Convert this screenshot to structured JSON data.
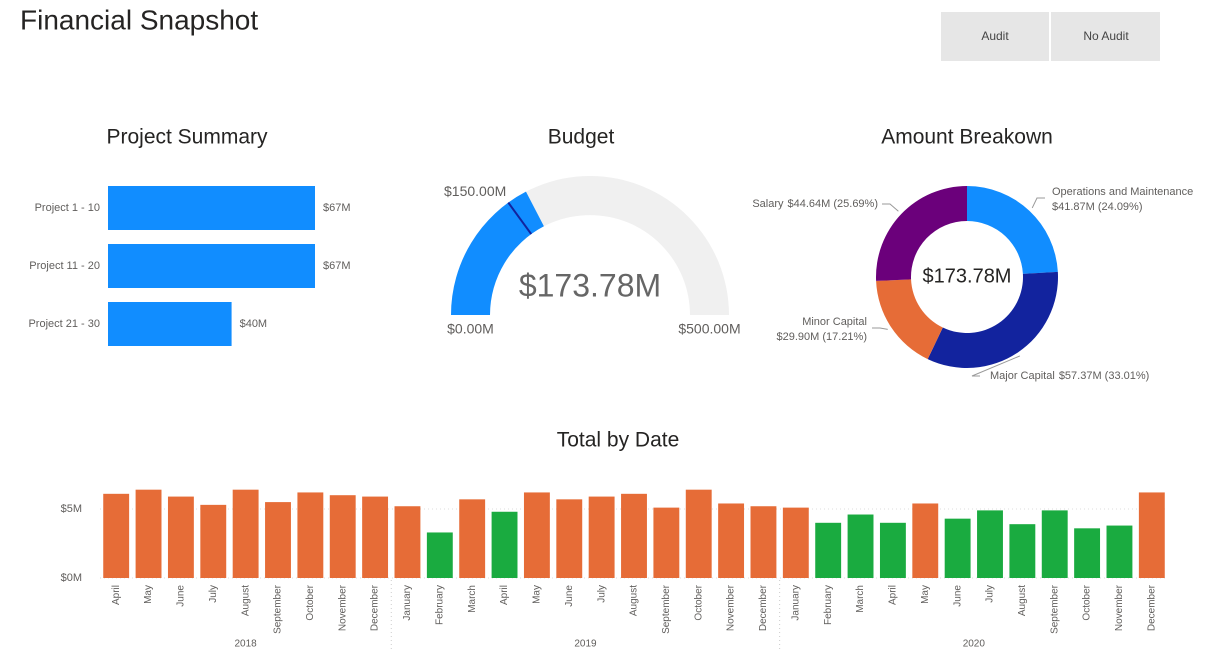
{
  "header": {
    "title": "Financial Snapshot",
    "buttons": [
      "Audit",
      "No Audit"
    ]
  },
  "chart_data": [
    {
      "type": "hbar",
      "title": "Project Summary",
      "categories": [
        "Project 1 - 10",
        "Project 11 - 20",
        "Project 21 - 30"
      ],
      "values": [
        67,
        67,
        40
      ],
      "value_labels": [
        "$67M",
        "$67M",
        "$40M"
      ],
      "color": "#118dff"
    },
    {
      "type": "gauge",
      "title": "Budget",
      "values": [
        173.78
      ],
      "value_labels": [
        "$173.78M"
      ],
      "ylim": [
        0,
        500
      ],
      "yticks": [
        {
          "value": 0,
          "label": "$0.00M"
        },
        {
          "value": 500,
          "label": "$500.00M"
        }
      ],
      "target": {
        "value": 150,
        "label": "$150.00M"
      },
      "color": "#118dff",
      "track_color": "#f0f0f0",
      "target_color": "#12239e"
    },
    {
      "type": "donut",
      "title": "Amount Breakown",
      "categories": [
        "Operations and Maintenance",
        "Major Capital",
        "Minor Capital",
        "Salary"
      ],
      "values": [
        41.87,
        57.37,
        29.9,
        44.64
      ],
      "value_labels": [
        "$41.87M (24.09%)",
        "$57.37M (33.01%)",
        "$29.90M (17.21%)",
        "$44.64M (25.69%)"
      ],
      "colors": [
        "#118dff",
        "#12239e",
        "#e66c37",
        "#6b007b"
      ],
      "center_label": "$173.78M"
    },
    {
      "type": "bar",
      "title": "Total by Date",
      "groups": [
        {
          "name": "2018",
          "categories": [
            "April",
            "May",
            "June",
            "July",
            "August",
            "September",
            "October",
            "November",
            "December"
          ],
          "values": [
            6.1,
            6.4,
            5.9,
            5.3,
            6.4,
            5.5,
            6.2,
            6.0,
            5.9
          ],
          "colors": [
            "#e66c37",
            "#e66c37",
            "#e66c37",
            "#e66c37",
            "#e66c37",
            "#e66c37",
            "#e66c37",
            "#e66c37",
            "#e66c37"
          ]
        },
        {
          "name": "2019",
          "categories": [
            "January",
            "February",
            "March",
            "April",
            "May",
            "June",
            "July",
            "August",
            "September",
            "October",
            "November",
            "December"
          ],
          "values": [
            5.2,
            3.3,
            5.7,
            4.8,
            6.2,
            5.7,
            5.9,
            6.1,
            5.1,
            6.4,
            5.4,
            5.2
          ],
          "colors": [
            "#e66c37",
            "#1aab40",
            "#e66c37",
            "#1aab40",
            "#e66c37",
            "#e66c37",
            "#e66c37",
            "#e66c37",
            "#e66c37",
            "#e66c37",
            "#e66c37",
            "#e66c37"
          ]
        },
        {
          "name": "2020",
          "categories": [
            "January",
            "February",
            "March",
            "April",
            "May",
            "June",
            "July",
            "August",
            "September",
            "October",
            "November",
            "December"
          ],
          "values": [
            5.1,
            4.0,
            4.6,
            4.0,
            5.4,
            4.3,
            4.9,
            3.9,
            4.9,
            3.6,
            3.8,
            6.2
          ],
          "colors": [
            "#e66c37",
            "#1aab40",
            "#1aab40",
            "#1aab40",
            "#e66c37",
            "#1aab40",
            "#1aab40",
            "#1aab40",
            "#1aab40",
            "#1aab40",
            "#1aab40",
            "#e66c37"
          ]
        }
      ],
      "ylim": [
        0,
        7
      ],
      "yticks": [
        {
          "value": 0,
          "label": "$0M"
        },
        {
          "value": 5,
          "label": "$5M"
        }
      ],
      "grid": true
    }
  ]
}
